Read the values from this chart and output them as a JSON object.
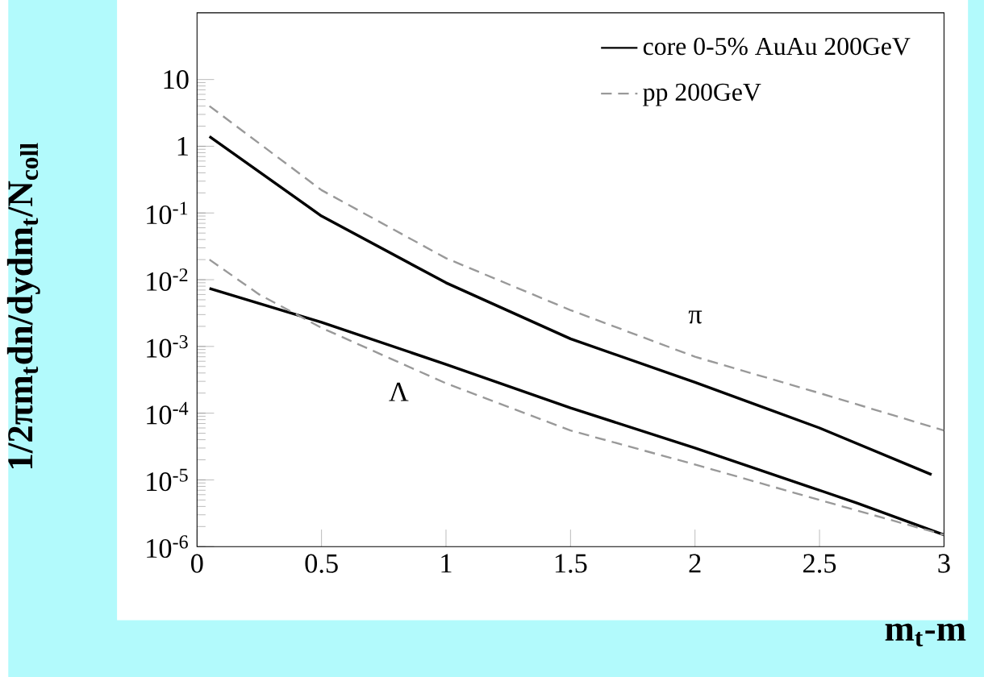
{
  "chart_data": {
    "type": "line",
    "xlabel": "m$_{t}$-m",
    "ylabel": "1/2πm$_{t}$dn/dydm$_{t}$/N$_{coll}$",
    "x": [
      0.05,
      0.5,
      1,
      1.5,
      2,
      2.5,
      2.95
    ],
    "series": [
      {
        "name": "core 0-5% AuAu 200GeV",
        "color": "#000000",
        "line_style": "solid",
        "values": [
          1.4,
          0.09,
          0.009,
          0.0013,
          0.00029,
          6e-05,
          1.2e-05
        ]
      },
      {
        "name": "pp 200GeV",
        "color": "#999999",
        "line_style": "dashed",
        "x": [
          0.05,
          0.5,
          1,
          1.5,
          2,
          2.5,
          3
        ],
        "values": [
          4,
          0.22,
          0.021,
          0.0035,
          0.0007,
          0.0002,
          5.5e-05
        ]
      },
      {
        "color": "#000000",
        "line_style": "solid",
        "x": [
          0.05,
          0.5,
          1,
          1.5,
          2,
          2.5,
          2.65,
          3
        ],
        "values": [
          0.0074,
          0.0023,
          0.00054,
          0.00012,
          3e-05,
          7e-06,
          4.5e-06,
          1.5e-06
        ]
      },
      {
        "color": "#999999",
        "line_style": "dashed",
        "x": [
          0.05,
          0.25,
          0.5,
          1,
          1.5,
          2,
          2.5,
          3
        ],
        "values": [
          0.02,
          0.006,
          0.0019,
          0.00028,
          5.5e-05,
          1.7e-05,
          5e-06,
          1.5e-06
        ]
      }
    ],
    "annotations": [
      "π",
      "Λ"
    ],
    "log": "y",
    "legend": "top right",
    "xlim": [
      0,
      3
    ],
    "ylim": [
      1e-06,
      100
    ],
    "xticks": [
      0,
      0.5,
      1,
      1.5,
      2,
      2.5,
      3
    ],
    "yticks": [
      {
        "value": 1e-06,
        "label": "10$^{-6}$"
      },
      {
        "value": 1e-05,
        "label": "10$^{-5}$"
      },
      {
        "value": 0.0001,
        "label": "10$^{-4}$"
      },
      {
        "value": 0.001,
        "label": "10$^{-3}$"
      },
      {
        "value": 0.01,
        "label": "10$^{-2}$"
      },
      {
        "value": 0.1,
        "label": "10$^{-1}$"
      },
      1,
      10
    ]
  }
}
